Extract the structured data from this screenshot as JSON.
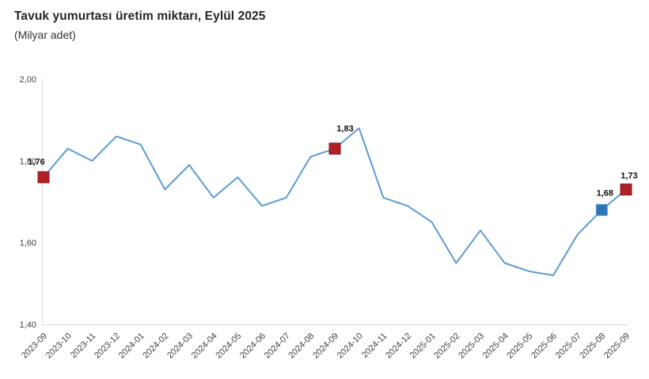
{
  "header": {
    "title": "Tavuk yumurtası üretim miktarı, Eylül 2025",
    "subtitle": "(Milyar adet)"
  },
  "chart_data": {
    "type": "line",
    "title": "Tavuk yumurtası üretim miktarı, Eylül 2025",
    "ylabel": "(Milyar adet)",
    "xlabel": "",
    "categories": [
      "2023-09",
      "2023-10",
      "2023-11",
      "2023-12",
      "2024-01",
      "2024-02",
      "2024-03",
      "2024-04",
      "2024-05",
      "2024-06",
      "2024-07",
      "2024-08",
      "2024-09",
      "2024-10",
      "2024-11",
      "2024-12",
      "2025-01",
      "2025-02",
      "2025-03",
      "2025-04",
      "2025-05",
      "2025-06",
      "2025-07",
      "2025-08",
      "2025-09"
    ],
    "values": [
      1.76,
      1.83,
      1.8,
      1.86,
      1.84,
      1.73,
      1.79,
      1.71,
      1.76,
      1.69,
      1.71,
      1.81,
      1.83,
      1.88,
      1.71,
      1.69,
      1.65,
      1.55,
      1.63,
      1.55,
      1.53,
      1.52,
      1.62,
      1.68,
      1.73
    ],
    "ylim": [
      1.4,
      2.0
    ],
    "yticks": [
      2.0,
      1.8,
      1.6,
      1.4
    ],
    "ytick_labels": [
      "2,00",
      "1,80",
      "1,60",
      "1,40"
    ],
    "grid": false,
    "legend": "none",
    "line_color": "#5B9BD5",
    "axis_color": "#d9d9d9",
    "decimal_separator": ",",
    "highlight_points": [
      {
        "category": "2023-09",
        "index": 0,
        "label": "1,76",
        "color": "#b02126",
        "border": "#8c161b"
      },
      {
        "category": "2024-09",
        "index": 12,
        "label": "1,83",
        "color": "#b02126",
        "border": "#8c161b"
      },
      {
        "category": "2025-08",
        "index": 23,
        "label": "1,68",
        "color": "#2e75b6",
        "border": "#5B9BD5"
      },
      {
        "category": "2025-09",
        "index": 24,
        "label": "1,73",
        "color": "#b02126",
        "border": "#8c161b"
      }
    ]
  }
}
